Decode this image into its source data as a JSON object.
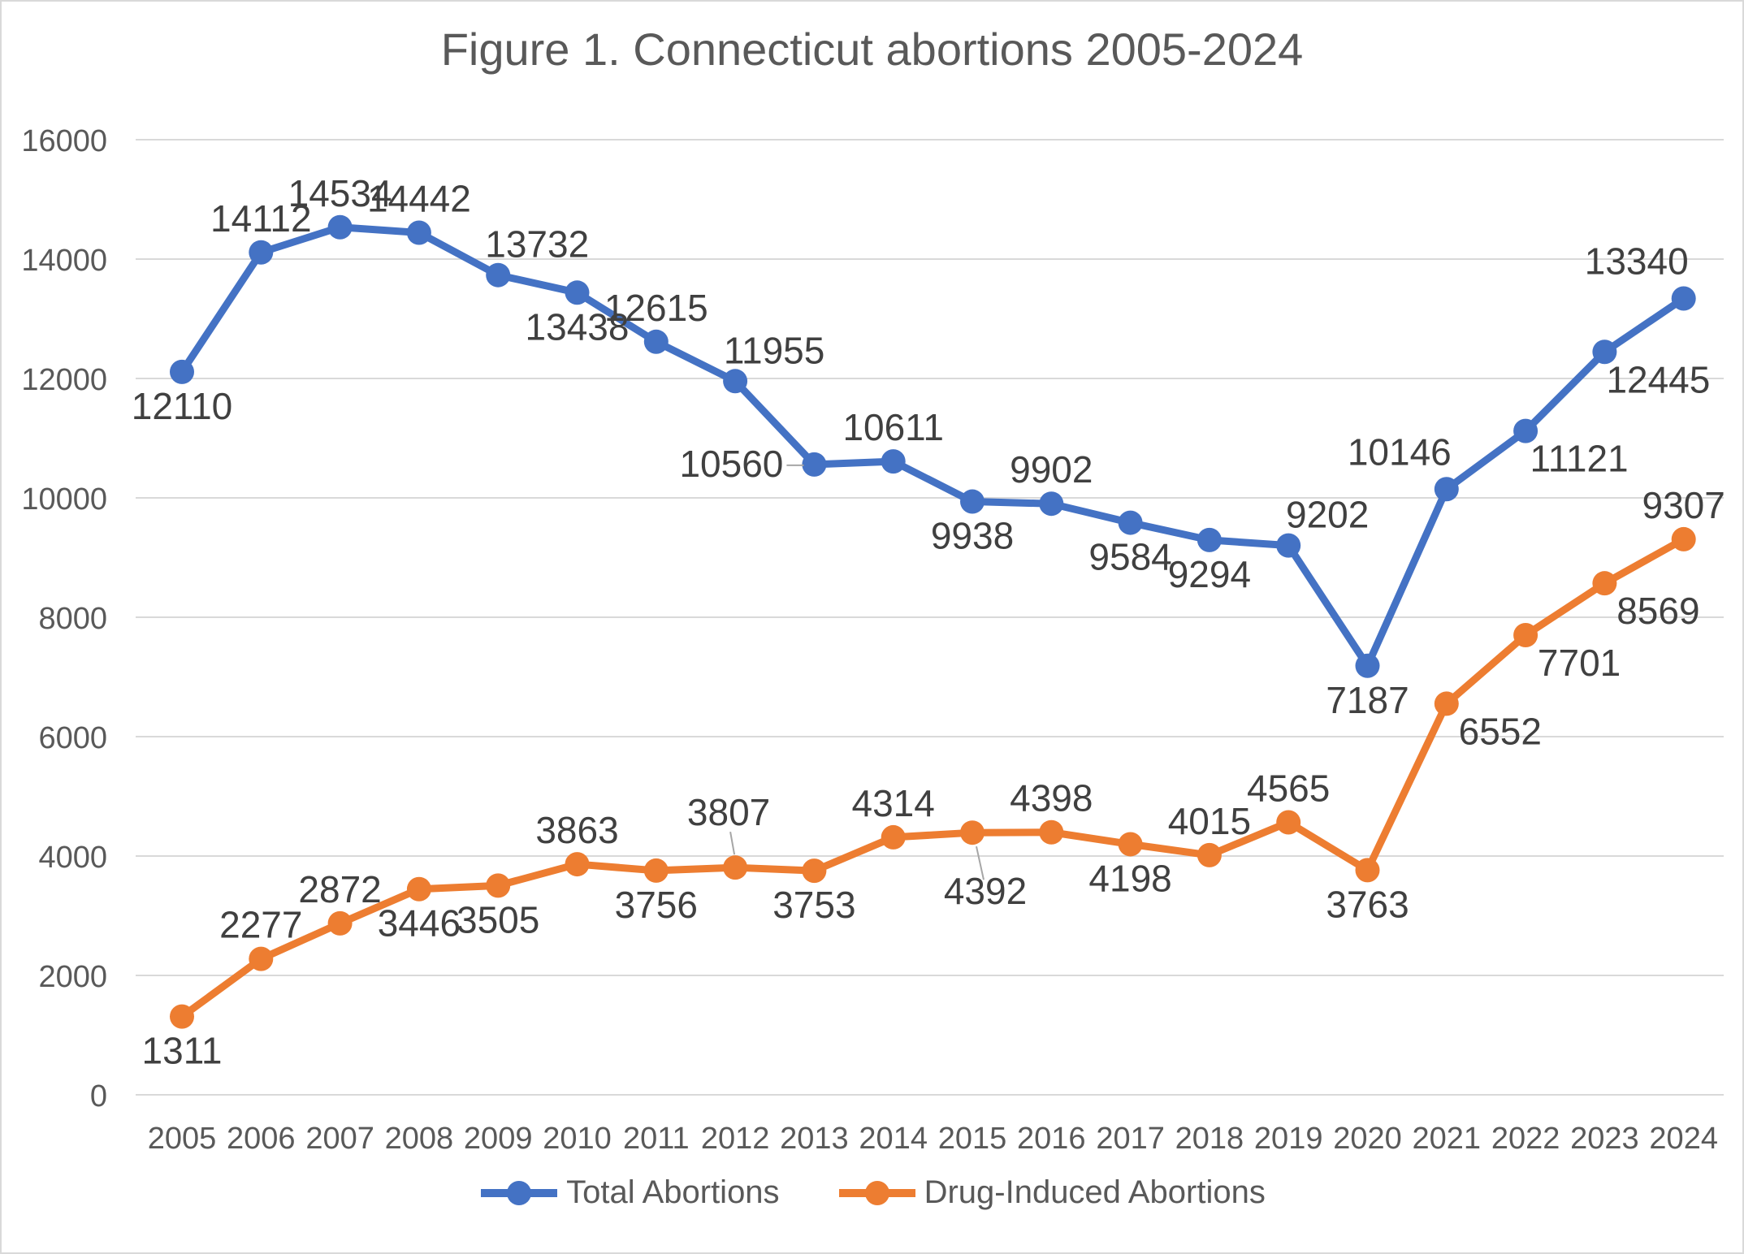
{
  "chart_data": {
    "type": "line",
    "title": "Figure 1. Connecticut abortions 2005-2024",
    "categories": [
      "2005",
      "2006",
      "2007",
      "2008",
      "2009",
      "2010",
      "2011",
      "2012",
      "2013",
      "2014",
      "2015",
      "2016",
      "2017",
      "2018",
      "2019",
      "2020",
      "2021",
      "2022",
      "2023",
      "2024"
    ],
    "series": [
      {
        "name": "Total Abortions",
        "color": "#4472C4",
        "values": [
          12110,
          14112,
          14534,
          14442,
          13732,
          13438,
          12615,
          11955,
          10560,
          10611,
          9938,
          9902,
          9584,
          9294,
          9202,
          7187,
          10146,
          11121,
          12445,
          13340
        ],
        "label_pos": [
          "below",
          "above",
          "above",
          "above",
          "above-right",
          "below",
          "above",
          "above-right",
          "left-leader",
          "above",
          "below",
          "above",
          "below",
          "below",
          "above-right",
          "below",
          "above-left",
          "below-right",
          "below-right",
          "above-left"
        ]
      },
      {
        "name": "Drug-Induced Abortions",
        "color": "#ED7D31",
        "values": [
          1311,
          2277,
          2872,
          3446,
          3505,
          3863,
          3756,
          3807,
          3753,
          4314,
          4392,
          4398,
          4198,
          4015,
          4565,
          3763,
          6552,
          7701,
          8569,
          9307
        ],
        "label_pos": [
          "below",
          "above",
          "above",
          "below",
          "below",
          "above",
          "below",
          "above-leader",
          "below",
          "above",
          "below-leader",
          "above",
          "below",
          "above",
          "above",
          "below",
          "below-right",
          "below-right",
          "below-right",
          "above"
        ]
      }
    ],
    "xlabel": "",
    "ylabel": "",
    "ylim": [
      0,
      16000
    ],
    "y_ticks": [
      0,
      2000,
      4000,
      6000,
      8000,
      10000,
      12000,
      14000,
      16000
    ],
    "grid": "horizontal",
    "legend_position": "bottom",
    "colors": {
      "gridline": "#D9D9D9",
      "axis_text": "#595959",
      "data_label_text": "#404040",
      "title_text": "#595959",
      "leader_line": "#A6A6A6"
    }
  }
}
